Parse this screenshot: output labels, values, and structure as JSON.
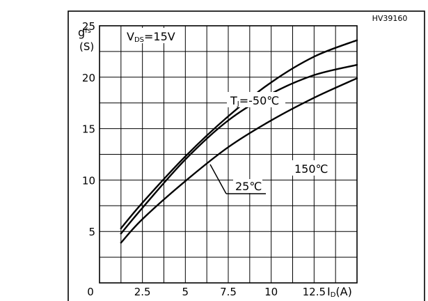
{
  "chart_data": {
    "type": "line",
    "figure_code": "HV39160",
    "condition_label": "V",
    "condition_sub": "DS",
    "condition_value": "=15V",
    "ylabel_main": "g",
    "ylabel_sub": "fs",
    "ylabel_unit": "(S)",
    "xlabel_main": "I",
    "xlabel_sub": "D",
    "xlabel_unit": "(A)",
    "xlim": [
      0,
      15
    ],
    "ylim": [
      0,
      25
    ],
    "grid": true,
    "x_ticks": [
      {
        "value": 0,
        "label": "0"
      },
      {
        "value": 2.5,
        "label": "2.5"
      },
      {
        "value": 5,
        "label": "5"
      },
      {
        "value": 7.5,
        "label": "7.5"
      },
      {
        "value": 10,
        "label": "10"
      },
      {
        "value": 12.5,
        "label": "12.5"
      }
    ],
    "y_ticks": [
      {
        "value": 5,
        "label": "5"
      },
      {
        "value": 10,
        "label": "10"
      },
      {
        "value": 15,
        "label": "15"
      },
      {
        "value": 20,
        "label": "20"
      },
      {
        "value": 25,
        "label": "25"
      }
    ],
    "series": [
      {
        "name": "TJ=-50℃",
        "label_main": "T",
        "label_sub": "J",
        "label_value": "=-50℃",
        "x": [
          1.25,
          2.5,
          5,
          7.5,
          10,
          12.5,
          15
        ],
        "y": [
          5.3,
          7.8,
          12.3,
          16.2,
          19.5,
          22.0,
          23.6
        ]
      },
      {
        "name": "25℃",
        "label_main": "25℃",
        "x": [
          1.25,
          2.5,
          5,
          7.5,
          10,
          12.5,
          15
        ],
        "y": [
          4.8,
          7.3,
          12.0,
          15.8,
          18.4,
          20.2,
          21.2
        ]
      },
      {
        "name": "150℃",
        "label_main": "150℃",
        "x": [
          1.25,
          2.5,
          5,
          7.5,
          10,
          12.5,
          15
        ],
        "y": [
          3.9,
          6.2,
          9.9,
          13.2,
          15.8,
          18.0,
          19.9
        ]
      }
    ]
  }
}
